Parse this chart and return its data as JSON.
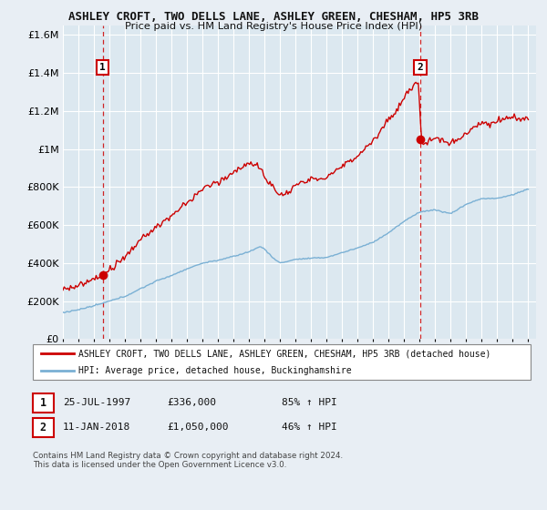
{
  "title": "ASHLEY CROFT, TWO DELLS LANE, ASHLEY GREEN, CHESHAM, HP5 3RB",
  "subtitle": "Price paid vs. HM Land Registry's House Price Index (HPI)",
  "legend_line1": "ASHLEY CROFT, TWO DELLS LANE, ASHLEY GREEN, CHESHAM, HP5 3RB (detached house)",
  "legend_line2": "HPI: Average price, detached house, Buckinghamshire",
  "annotation1_label": "1",
  "annotation1_date": "25-JUL-1997",
  "annotation1_price": "£336,000",
  "annotation1_hpi": "85% ↑ HPI",
  "annotation1_year": 1997.56,
  "annotation1_value": 336000,
  "annotation2_label": "2",
  "annotation2_date": "11-JAN-2018",
  "annotation2_price": "£1,050,000",
  "annotation2_hpi": "46% ↑ HPI",
  "annotation2_year": 2018.04,
  "annotation2_value": 1050000,
  "footer": "Contains HM Land Registry data © Crown copyright and database right 2024.\nThis data is licensed under the Open Government Licence v3.0.",
  "ylim": [
    0,
    1650000
  ],
  "xlim_start": 1995.0,
  "xlim_end": 2025.5,
  "red_color": "#cc0000",
  "blue_color": "#7ab0d4",
  "bg_color": "#dce8f0",
  "plot_bg": "#dce8f0",
  "grid_color": "#ffffff",
  "title_color": "#111111",
  "fig_bg": "#e8eef4"
}
